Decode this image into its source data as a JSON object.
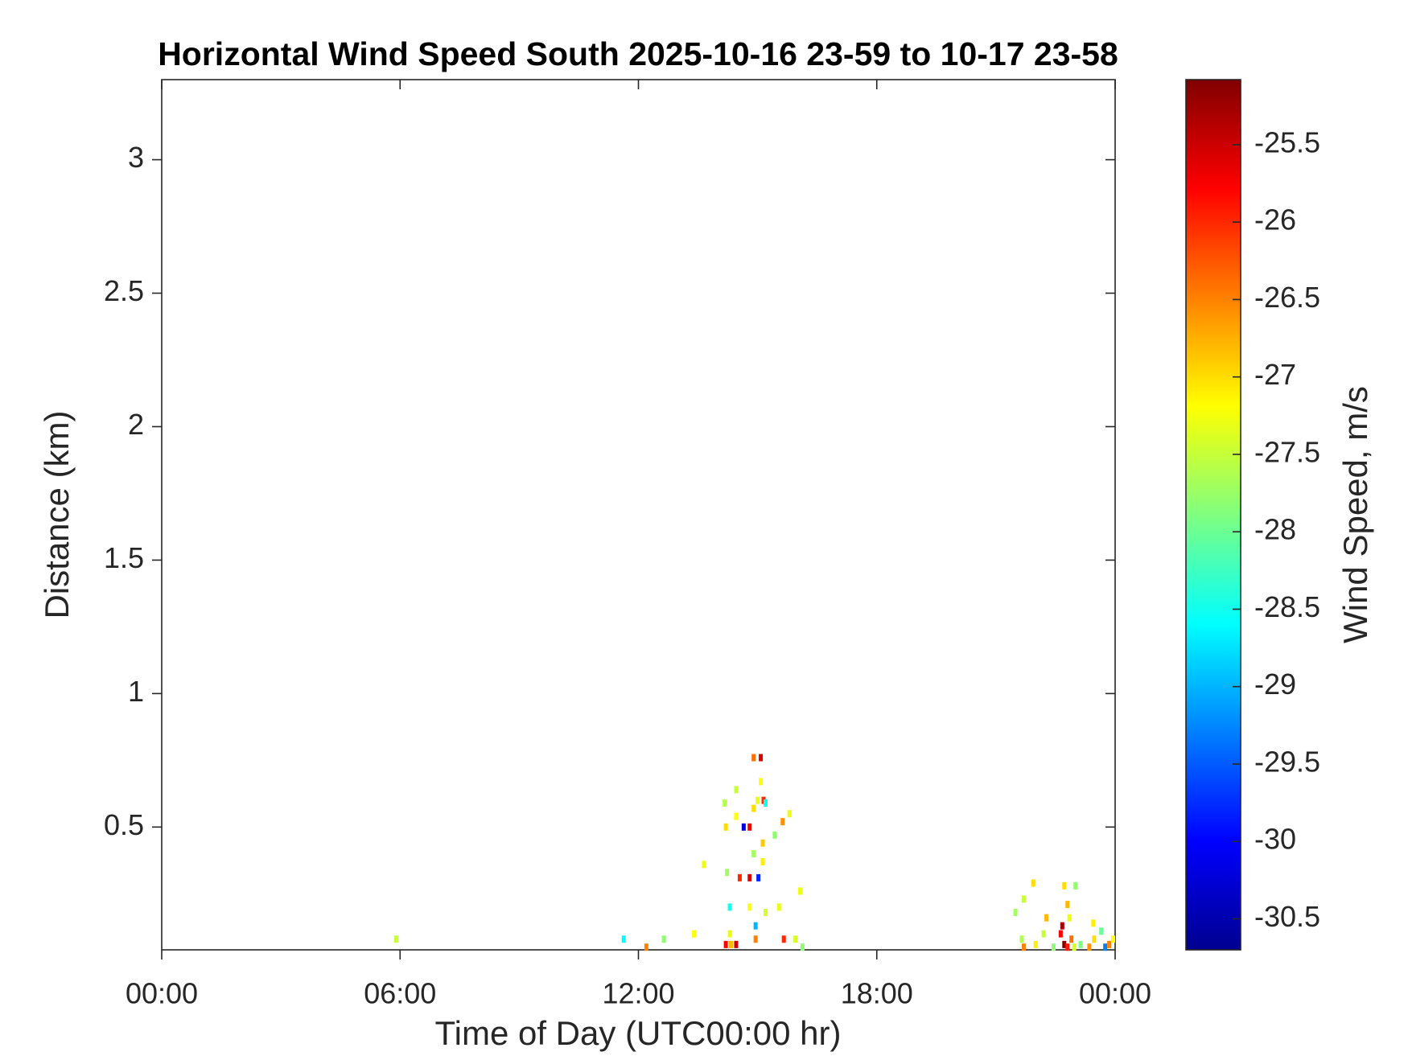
{
  "chart_data": {
    "type": "heatmap",
    "title": "Horizontal Wind Speed South 2025-10-16 23-59 to 10-17 23-58",
    "xlabel": "Time of Day (UTC00:00 hr)",
    "ylabel": "Distance (km)",
    "colorbar_label": "Wind Speed, m/s",
    "colormap": "jet",
    "xlim": [
      0,
      24
    ],
    "xticks": [
      {
        "value": 0,
        "label": "00:00"
      },
      {
        "value": 6,
        "label": "06:00"
      },
      {
        "value": 12,
        "label": "12:00"
      },
      {
        "value": 18,
        "label": "18:00"
      },
      {
        "value": 24,
        "label": "00:00"
      }
    ],
    "ylim": [
      0.04,
      3.3
    ],
    "yticks": [
      0.5,
      1,
      1.5,
      2,
      2.5,
      3
    ],
    "clim": [
      -30.7,
      -25.08
    ],
    "cticks": [
      -30.5,
      -30,
      -29.5,
      -29,
      -28.5,
      -28,
      -27.5,
      -27,
      -26.5,
      -26,
      -25.5
    ],
    "x": [
      5.9,
      11.63,
      12.2,
      12.64,
      13.4,
      13.65,
      14.2,
      14.3,
      14.17,
      14.2,
      14.23,
      14.3,
      14.33,
      14.46,
      14.46,
      14.46,
      14.65,
      14.55,
      14.8,
      14.8,
      14.8,
      14.95,
      14.95,
      15.02,
      14.9,
      14.9,
      15.0,
      15.08,
      15.08,
      14.9,
      15.15,
      15.2,
      15.13,
      15.13,
      15.2,
      15.43,
      15.63,
      15.66,
      15.8,
      15.54,
      16.07,
      15.95,
      16.13,
      21.49,
      21.7,
      21.94,
      21.65,
      21.7,
      22.0,
      22.2,
      22.27,
      22.45,
      22.63,
      22.67,
      22.72,
      22.72,
      22.8,
      22.85,
      22.8,
      22.9,
      23.0,
      22.97,
      23.13,
      23.35,
      23.45,
      23.47,
      23.65,
      23.75,
      23.85,
      23.95
    ],
    "y": [
      0.08,
      0.08,
      0.05,
      0.08,
      0.1,
      0.36,
      0.06,
      0.1,
      0.59,
      0.5,
      0.33,
      0.2,
      0.06,
      0.06,
      0.54,
      0.64,
      0.5,
      0.31,
      0.31,
      0.5,
      0.2,
      0.13,
      0.08,
      0.31,
      0.4,
      0.57,
      0.6,
      0.67,
      0.76,
      0.76,
      0.6,
      0.59,
      0.44,
      0.37,
      0.18,
      0.47,
      0.52,
      0.08,
      0.55,
      0.2,
      0.26,
      0.08,
      0.05,
      0.18,
      0.23,
      0.29,
      0.08,
      0.05,
      0.06,
      0.1,
      0.16,
      0.05,
      0.1,
      0.13,
      0.06,
      0.28,
      0.21,
      0.16,
      0.05,
      0.08,
      0.28,
      0.05,
      0.06,
      0.05,
      0.14,
      0.08,
      0.11,
      0.05,
      0.06,
      0.08
    ],
    "values": [
      -27.5,
      -28.6,
      -26.5,
      -27.8,
      -27.2,
      -27.3,
      -25.8,
      -27.3,
      -27.6,
      -27.0,
      -27.7,
      -28.5,
      -26.8,
      -25.5,
      -27.2,
      -27.5,
      -30.2,
      -26.0,
      -25.6,
      -25.7,
      -27.2,
      -29.0,
      -26.5,
      -29.8,
      -27.7,
      -27.0,
      -27.3,
      -27.2,
      -25.6,
      -26.4,
      -26.0,
      -28.5,
      -26.9,
      -27.1,
      -27.4,
      -27.8,
      -26.6,
      -26.0,
      -27.3,
      -27.3,
      -27.3,
      -27.4,
      -27.8,
      -27.7,
      -27.5,
      -27.0,
      -27.6,
      -26.5,
      -27.1,
      -27.5,
      -26.8,
      -27.8,
      -25.8,
      -25.3,
      -25.1,
      -27.0,
      -26.8,
      -27.3,
      -25.9,
      -26.4,
      -27.8,
      -27.4,
      -27.9,
      -26.6,
      -27.1,
      -27.0,
      -28.0,
      -29.3,
      -26.5,
      -27.2
    ]
  }
}
